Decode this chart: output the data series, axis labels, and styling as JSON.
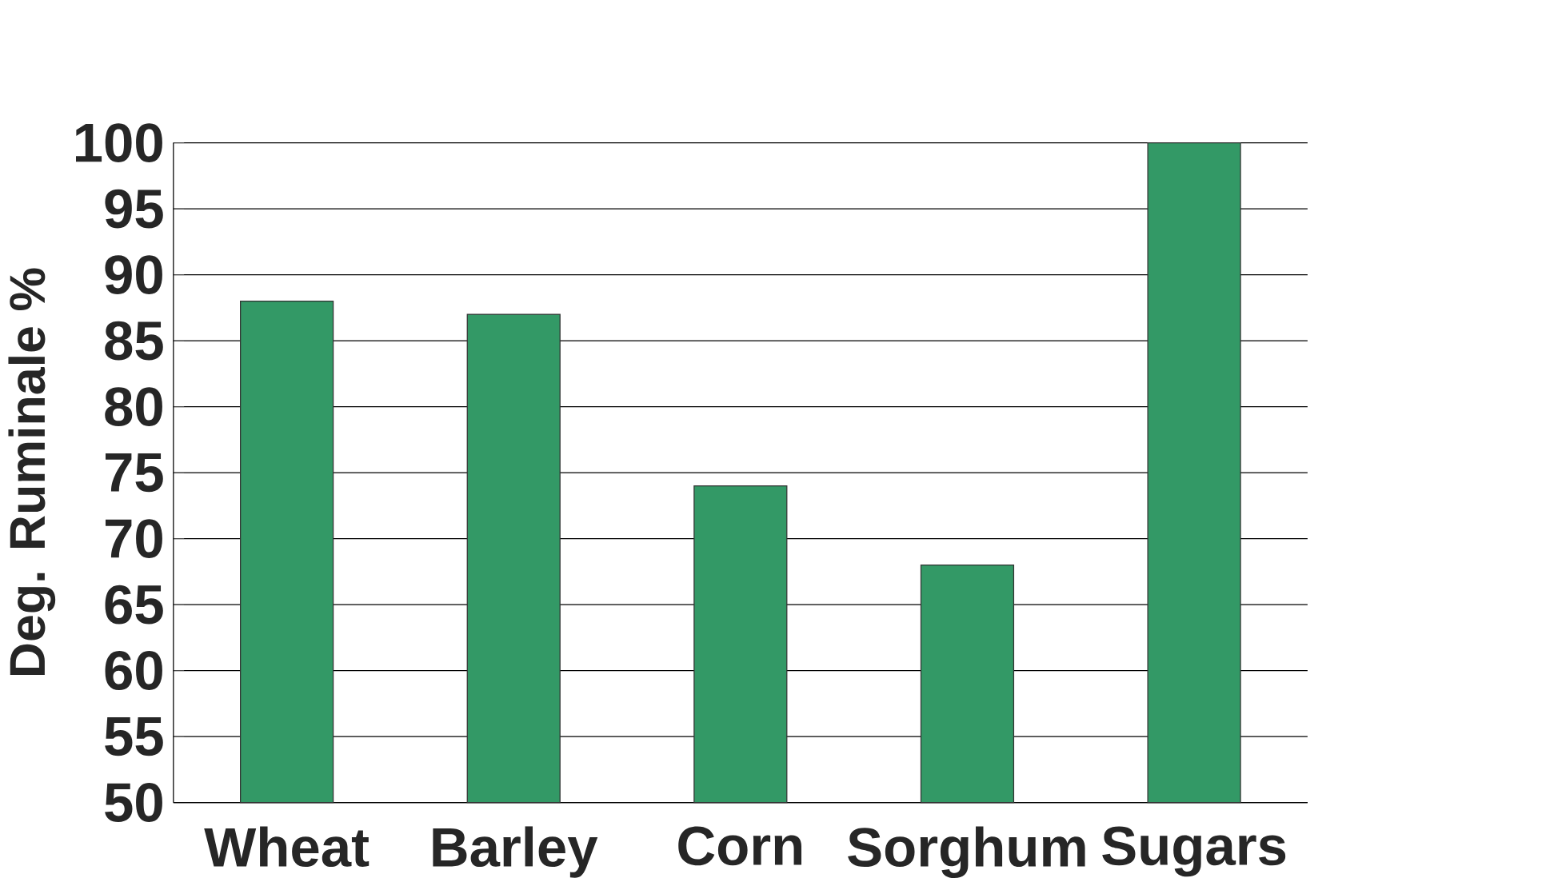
{
  "chart_data": {
    "type": "bar",
    "ylabel": "Deg. Ruminale %",
    "categories": [
      "Wheat",
      "Barley",
      "Corn",
      "Sorghum",
      "Sugars"
    ],
    "values": [
      88,
      87,
      74,
      68,
      100
    ],
    "color": "#339966",
    "ylim": [
      50,
      100
    ],
    "yticks": [
      50,
      55,
      60,
      65,
      70,
      75,
      80,
      85,
      90,
      95,
      100
    ],
    "grid": "y"
  }
}
